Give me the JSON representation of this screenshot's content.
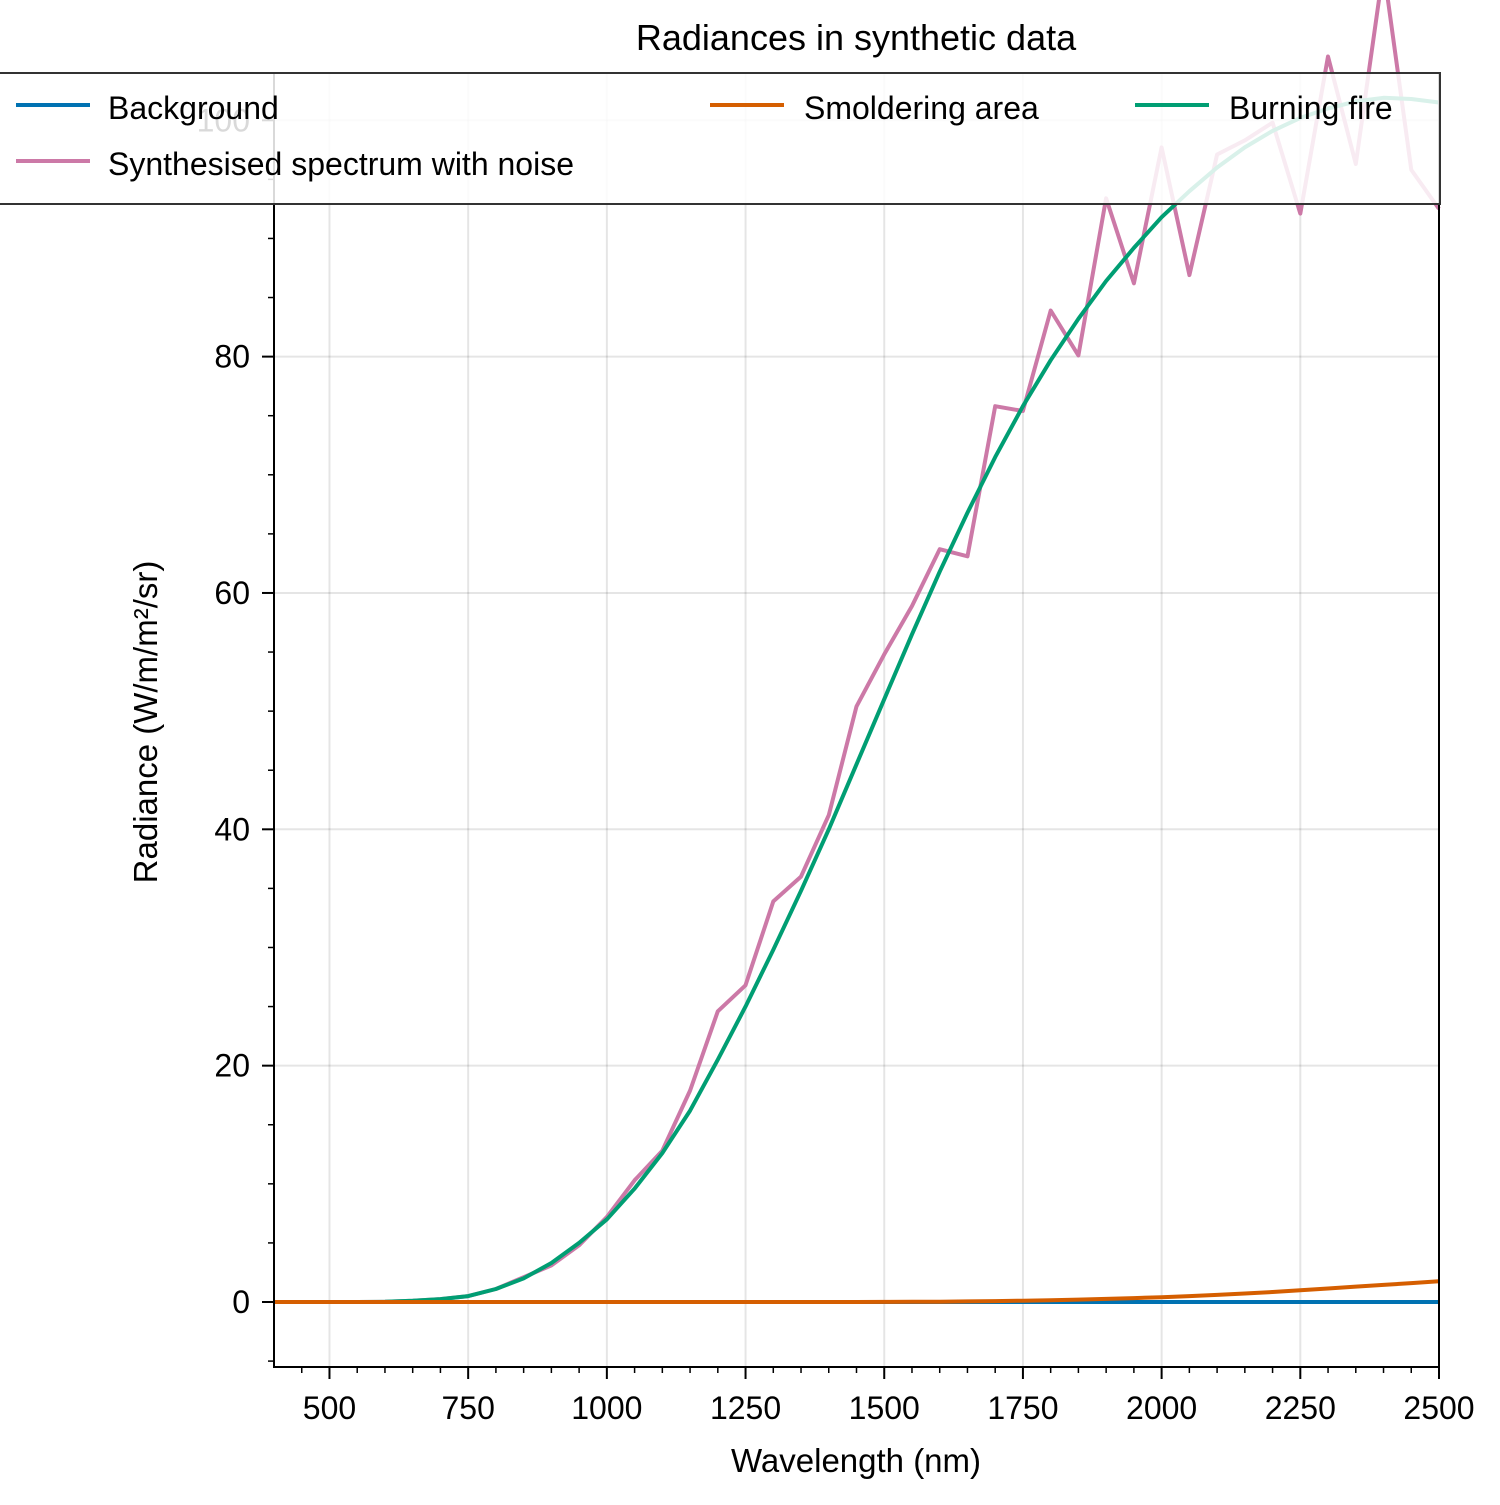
{
  "chart_data": {
    "type": "line",
    "title": "Radiances in synthetic data",
    "xlabel": "Wavelength (nm)",
    "ylabel": "Radiance (W/m/m²/sr)",
    "xlim": [
      400,
      2500
    ],
    "ylim": [
      -5.5,
      104
    ],
    "xticks": [
      500,
      750,
      1000,
      1250,
      1500,
      1750,
      2000,
      2250,
      2500
    ],
    "yticks": [
      0,
      20,
      40,
      60,
      80,
      100
    ],
    "grid": true,
    "legend_placement": "top",
    "x": [
      400,
      450,
      500,
      550,
      600,
      650,
      700,
      750,
      800,
      850,
      900,
      950,
      1000,
      1050,
      1100,
      1150,
      1200,
      1250,
      1300,
      1350,
      1400,
      1450,
      1500,
      1550,
      1600,
      1650,
      1700,
      1750,
      1800,
      1850,
      1900,
      1950,
      2000,
      2050,
      2100,
      2150,
      2200,
      2250,
      2300,
      2350,
      2400,
      2450,
      2500
    ],
    "series": [
      {
        "name": "Background",
        "color": "#0072b2",
        "values": [
          0,
          0,
          0,
          0,
          0,
          0,
          0,
          0,
          0,
          0,
          0,
          0,
          0,
          0,
          0,
          0,
          0,
          0,
          0,
          0,
          0,
          0,
          0,
          0,
          0,
          0,
          0,
          0,
          0,
          0,
          0,
          0,
          0,
          0,
          0,
          0,
          0,
          0,
          0,
          0,
          0,
          0,
          0
        ]
      },
      {
        "name": "Smoldering area",
        "color": "#d55e00",
        "values": [
          0,
          0,
          0,
          0,
          0,
          0,
          0,
          0,
          0,
          0,
          0,
          0,
          0,
          0,
          0,
          0,
          0,
          0,
          0,
          0,
          0,
          0,
          0.01,
          0.02,
          0.03,
          0.05,
          0.08,
          0.11,
          0.15,
          0.2,
          0.26,
          0.33,
          0.41,
          0.5,
          0.6,
          0.72,
          0.85,
          0.99,
          1.14,
          1.3,
          1.45,
          1.6,
          1.75
        ]
      },
      {
        "name": "Burning fire",
        "color": "#009e73",
        "values": [
          0,
          0,
          0,
          0,
          0.02,
          0.1,
          0.25,
          0.5,
          1.1,
          2.0,
          3.3,
          5.0,
          7.0,
          9.6,
          12.6,
          16.2,
          20.5,
          25.0,
          29.8,
          34.8,
          40.0,
          45.5,
          51.0,
          56.5,
          61.8,
          66.8,
          71.5,
          75.8,
          79.7,
          83.2,
          86.4,
          89.2,
          91.8,
          94.0,
          96.0,
          97.7,
          99.1,
          100.2,
          101.0,
          101.6,
          101.9,
          101.8,
          101.5
        ]
      },
      {
        "name": "Synthesised spectrum with noise",
        "color": "#cc79a7",
        "values": [
          0,
          0,
          0,
          0,
          0.02,
          0.1,
          0.25,
          0.5,
          1.1,
          2.1,
          3.1,
          4.8,
          7.2,
          10.3,
          12.8,
          17.9,
          24.6,
          26.8,
          33.9,
          36.0,
          41.2,
          50.4,
          54.8,
          58.9,
          63.7,
          63.1,
          75.8,
          75.4,
          83.9,
          80.1,
          93.4,
          86.2,
          97.7,
          86.9,
          97.1,
          98.3,
          99.8,
          92.1,
          105.4,
          96.3,
          112.9,
          95.8,
          92.5
        ]
      }
    ]
  }
}
